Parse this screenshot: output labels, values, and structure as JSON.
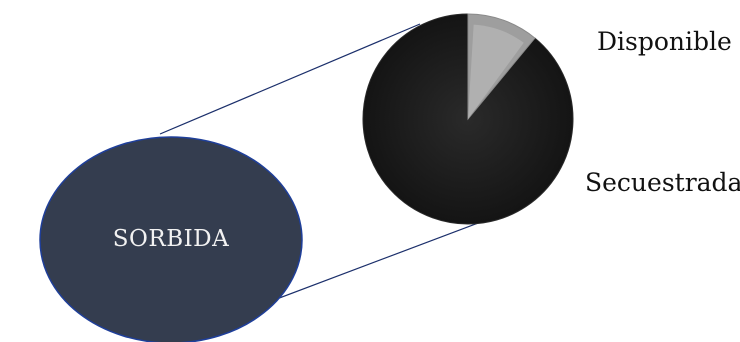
{
  "diagram": {
    "ellipse_label": "SORBIDA",
    "pie": {
      "slices": [
        {
          "label": "Disponible",
          "fraction": 0.11,
          "color": "#9e9e9e"
        },
        {
          "label": "Secuestrada",
          "fraction": 0.89,
          "color": "#1c1c1c"
        }
      ]
    },
    "colors": {
      "ellipse_fill": "#343d4f",
      "ellipse_stroke": "#1f3f9a",
      "connector": "#1b2f6b"
    }
  }
}
